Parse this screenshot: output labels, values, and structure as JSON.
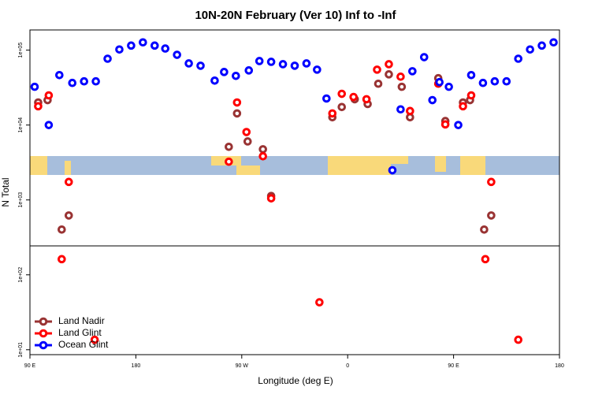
{
  "chart_data": {
    "type": "scatter",
    "title": "10N-20N February (Ver 10)   Inf to -Inf",
    "xlabel": "Longitude (deg E)",
    "ylabel": "N Total",
    "log_y": true,
    "legend": "bottom-left",
    "xlim": [
      90,
      540
    ],
    "xticks": [
      {
        "value": 90,
        "label": "90 E"
      },
      {
        "value": 180,
        "label": "180"
      },
      {
        "value": 270,
        "label": "90 W"
      },
      {
        "value": 360,
        "label": "0"
      },
      {
        "value": 450,
        "label": "90 E"
      },
      {
        "value": 540,
        "label": "180"
      }
    ],
    "ylim": [
      8.6,
      186000
    ],
    "yticks": [
      {
        "value": 10,
        "label": "1e+01"
      },
      {
        "value": 100,
        "label": "1e+02"
      },
      {
        "value": 1000,
        "label": "1e+03"
      },
      {
        "value": 10000,
        "label": "1e+04"
      },
      {
        "value": 100000,
        "label": "1e+05"
      }
    ],
    "series": [
      {
        "name": "Land Nadir",
        "color": "#993333",
        "x": [
          97,
          105,
          117,
          123,
          259,
          266,
          275,
          288,
          295,
          347,
          355,
          366,
          377,
          386,
          395,
          406,
          413,
          437,
          443,
          458,
          464,
          476,
          482
        ],
        "values": [
          20000,
          21500,
          402,
          620,
          5120,
          14300,
          6040,
          4750,
          1130,
          12700,
          17400,
          22100,
          19100,
          35600,
          47500,
          32400,
          12700,
          42200,
          11300,
          20000,
          21500,
          402,
          620
        ]
      },
      {
        "name": "Land Glint",
        "color": "#ff0000",
        "x": [
          97,
          106,
          117,
          123,
          145,
          259,
          266,
          274,
          288,
          295,
          336,
          347,
          355,
          365,
          376,
          385,
          395,
          405,
          413,
          437,
          443,
          458,
          465,
          477,
          482,
          505
        ],
        "values": [
          17800,
          24900,
          162,
          1740,
          13.6,
          3240,
          20000,
          8060,
          3830,
          1050,
          43,
          14300,
          26100,
          23700,
          22100,
          54900,
          64900,
          44200,
          15400,
          35600,
          10200,
          17800,
          24900,
          162,
          1740,
          13.6
        ]
      },
      {
        "name": "Ocean Glint",
        "color": "#0000ff",
        "x": [
          94,
          106,
          115,
          126,
          136,
          146,
          156,
          166,
          176,
          186,
          196,
          205,
          215,
          225,
          235,
          247,
          255,
          265,
          276,
          285,
          295,
          305,
          315,
          325,
          334,
          342,
          398,
          405,
          415,
          425,
          432,
          438,
          446,
          454,
          465,
          475,
          485,
          495,
          505,
          515,
          525,
          535
        ],
        "values": [
          32400,
          10000,
          46400,
          36500,
          38300,
          38300,
          76800,
          102000,
          115000,
          127000,
          115000,
          105000,
          86600,
          66500,
          61900,
          39200,
          51100,
          45300,
          53600,
          71500,
          69800,
          64900,
          61900,
          66500,
          54900,
          22600,
          2490,
          16200,
          52300,
          80600,
          21500,
          37400,
          32400,
          10000,
          46400,
          36500,
          38300,
          38300,
          76800,
          102000,
          115000,
          127000
        ]
      }
    ]
  }
}
